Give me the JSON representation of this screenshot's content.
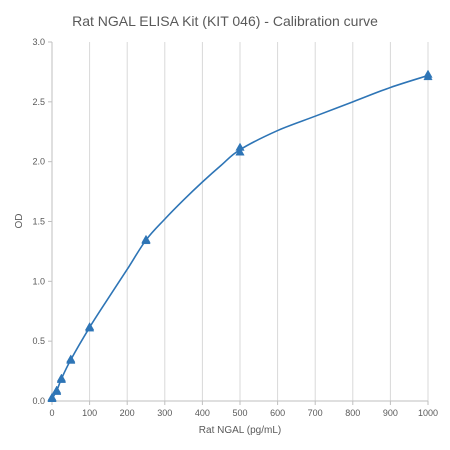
{
  "chart_data": {
    "type": "scatter",
    "title": "Rat NGAL ELISA Kit (KIT 046) - Calibration curve",
    "xlabel": "Rat NGAL (pg/mL)",
    "ylabel": "OD",
    "xlim": [
      0,
      1000
    ],
    "ylim": [
      0,
      3.0
    ],
    "x_ticks": [
      0,
      100,
      200,
      300,
      400,
      500,
      600,
      700,
      800,
      900,
      1000
    ],
    "y_ticks": [
      0.0,
      0.5,
      1.0,
      1.5,
      2.0,
      2.5,
      3.0
    ],
    "y_tick_labels": [
      "0.0",
      "0.5",
      "1.0",
      "1.5",
      "2.0",
      "2.5",
      "3.0"
    ],
    "grid": "vertical",
    "series": [
      {
        "marker": "triangle",
        "color": "#2E75B6",
        "points": [
          {
            "x": 0,
            "y": 0.02
          },
          {
            "x": 0,
            "y": 0.03
          },
          {
            "x": 12.5,
            "y": 0.08
          },
          {
            "x": 12.5,
            "y": 0.09
          },
          {
            "x": 25,
            "y": 0.18
          },
          {
            "x": 25,
            "y": 0.19
          },
          {
            "x": 50,
            "y": 0.34
          },
          {
            "x": 50,
            "y": 0.35
          },
          {
            "x": 100,
            "y": 0.61
          },
          {
            "x": 100,
            "y": 0.62
          },
          {
            "x": 250,
            "y": 1.34
          },
          {
            "x": 250,
            "y": 1.35
          },
          {
            "x": 500,
            "y": 2.08
          },
          {
            "x": 500,
            "y": 2.12
          },
          {
            "x": 1000,
            "y": 2.71
          },
          {
            "x": 1000,
            "y": 2.73
          }
        ],
        "fit_curve": [
          [
            0,
            0.02
          ],
          [
            12.5,
            0.085
          ],
          [
            25,
            0.185
          ],
          [
            50,
            0.345
          ],
          [
            100,
            0.615
          ],
          [
            150,
            0.86
          ],
          [
            200,
            1.1
          ],
          [
            250,
            1.345
          ],
          [
            300,
            1.52
          ],
          [
            350,
            1.68
          ],
          [
            400,
            1.83
          ],
          [
            450,
            1.97
          ],
          [
            500,
            2.1
          ],
          [
            600,
            2.26
          ],
          [
            700,
            2.38
          ],
          [
            800,
            2.5
          ],
          [
            900,
            2.62
          ],
          [
            1000,
            2.72
          ]
        ]
      }
    ]
  },
  "colors": {
    "series": "#2E75B6",
    "grid": "#D9D9D9",
    "axis": "#BFBFBF",
    "text": "#595959"
  }
}
